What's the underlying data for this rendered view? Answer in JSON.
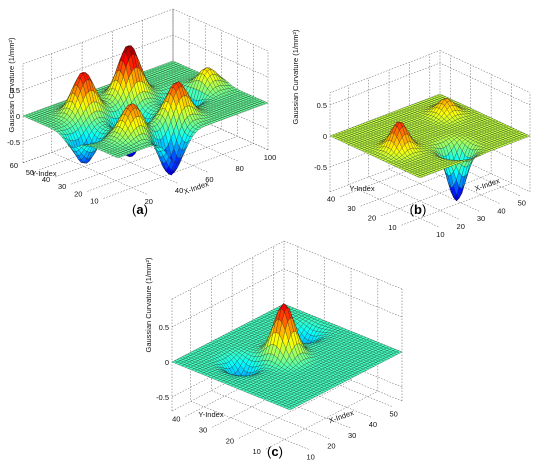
{
  "chart_data": [
    {
      "type": "surface",
      "panel_label": "a",
      "zlabel": "Gaussian Curvature (1/mm²)",
      "xlabel": "X-Index",
      "ylabel": "Y-Index",
      "x_ticks": [
        "20",
        "40",
        "60",
        "80",
        "100"
      ],
      "y_ticks": [
        "10",
        "20",
        "30",
        "40",
        "50",
        "60"
      ],
      "z_ticks": [
        "-0.5",
        "0",
        "0.5"
      ],
      "xlim": [
        1,
        100
      ],
      "ylim": [
        1,
        60
      ],
      "zlim": [
        -0.9,
        1.0
      ],
      "colormap": "jet",
      "grid": true,
      "peaks": [
        {
          "x": 25,
          "y": 45,
          "z": 0.8
        },
        {
          "x": 55,
          "y": 45,
          "z": 1.0
        },
        {
          "x": 25,
          "y": 15,
          "z": 0.6
        },
        {
          "x": 55,
          "y": 15,
          "z": 0.7
        },
        {
          "x": 90,
          "y": 30,
          "z": 0.4
        }
      ],
      "troughs": [
        {
          "x": 10,
          "y": 30,
          "z": -0.6
        },
        {
          "x": 40,
          "y": 30,
          "z": -0.8
        },
        {
          "x": 40,
          "y": 5,
          "z": -0.8
        },
        {
          "x": 75,
          "y": 30,
          "z": -0.7
        }
      ]
    },
    {
      "type": "surface",
      "panel_label": "b",
      "zlabel": "Gaussian Curvature (1/mm²)",
      "xlabel": "X-Index",
      "ylabel": "Y-Index",
      "x_ticks": [
        "10",
        "20",
        "30",
        "40",
        "50"
      ],
      "y_ticks": [
        "10",
        "20",
        "30",
        "40"
      ],
      "z_ticks": [
        "-0.5",
        "0",
        "0.5"
      ],
      "xlim": [
        1,
        55
      ],
      "ylim": [
        1,
        45
      ],
      "zlim": [
        -0.9,
        0.7
      ],
      "colormap": "jet",
      "grid": true,
      "peaks": [
        {
          "x": 12,
          "y": 22,
          "z": 0.45
        },
        {
          "x": 45,
          "y": 32,
          "z": 0.25
        }
      ],
      "troughs": [
        {
          "x": 28,
          "y": 10,
          "z": -0.85
        }
      ]
    },
    {
      "type": "surface",
      "panel_label": "c",
      "zlabel": "Gaussian Curvature (1/mm²)",
      "xlabel": "X-Index",
      "ylabel": "Y-Index",
      "x_ticks": [
        "10",
        "20",
        "30",
        "40",
        "50"
      ],
      "y_ticks": [
        "10",
        "20",
        "30",
        "40"
      ],
      "z_ticks": [
        "-0.5",
        "0",
        "0.5"
      ],
      "xlim": [
        1,
        55
      ],
      "ylim": [
        1,
        45
      ],
      "zlim": [
        -0.7,
        0.9
      ],
      "colormap": "jet",
      "grid": true,
      "peaks": [
        {
          "x": 28,
          "y": 24,
          "z": 0.75
        }
      ],
      "troughs": [
        {
          "x": 45,
          "y": 30,
          "z": -0.25
        },
        {
          "x": 15,
          "y": 30,
          "z": -0.3
        }
      ]
    }
  ]
}
